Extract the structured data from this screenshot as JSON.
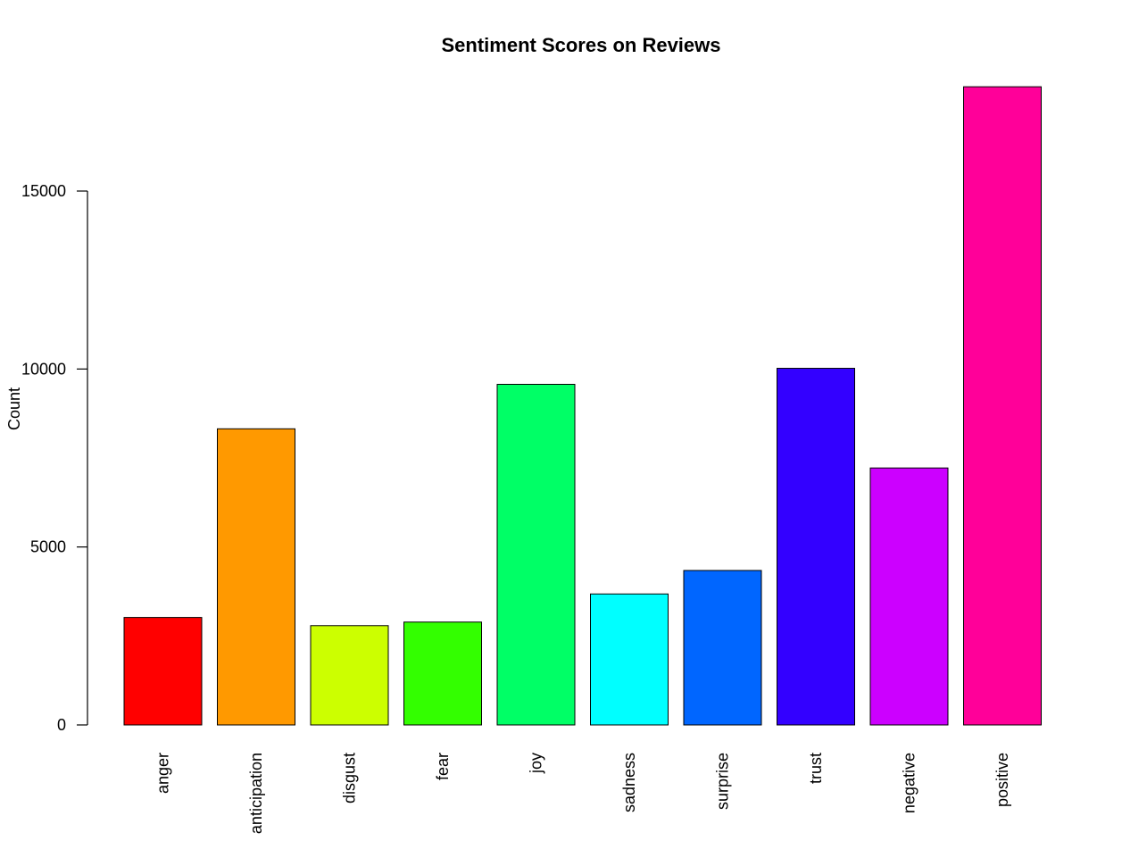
{
  "chart_data": {
    "type": "bar",
    "title": "Sentiment Scores on Reviews",
    "xlabel": "",
    "ylabel": "Count",
    "categories": [
      "anger",
      "anticipation",
      "disgust",
      "fear",
      "joy",
      "sadness",
      "surprise",
      "trust",
      "negative",
      "positive"
    ],
    "values": [
      3020,
      8320,
      2790,
      2890,
      9570,
      3680,
      4340,
      10020,
      7220,
      17930
    ],
    "colors": [
      "#FF0000",
      "#FF9900",
      "#CCFF00",
      "#33FF00",
      "#00FF66",
      "#00FFFF",
      "#0066FF",
      "#3300FF",
      "#CC00FF",
      "#FF0099"
    ],
    "yticks": [
      0,
      5000,
      10000,
      15000
    ],
    "ytick_labels": [
      "0",
      "5000",
      "10000",
      "15000"
    ],
    "ylim": [
      0,
      18000
    ],
    "grid": false,
    "legend": "none"
  }
}
